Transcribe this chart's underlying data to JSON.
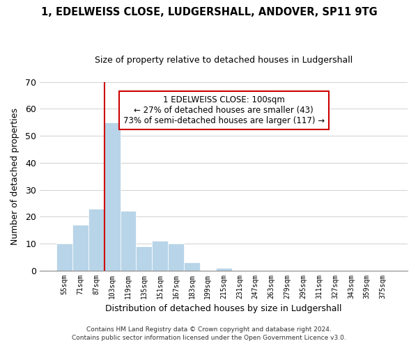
{
  "title": "1, EDELWEISS CLOSE, LUDGERSHALL, ANDOVER, SP11 9TG",
  "subtitle": "Size of property relative to detached houses in Ludgershall",
  "xlabel": "Distribution of detached houses by size in Ludgershall",
  "ylabel": "Number of detached properties",
  "bar_color": "#b8d4e8",
  "bins": [
    "55sqm",
    "71sqm",
    "87sqm",
    "103sqm",
    "119sqm",
    "135sqm",
    "151sqm",
    "167sqm",
    "183sqm",
    "199sqm",
    "215sqm",
    "231sqm",
    "247sqm",
    "263sqm",
    "279sqm",
    "295sqm",
    "311sqm",
    "327sqm",
    "343sqm",
    "359sqm",
    "375sqm"
  ],
  "values": [
    10,
    17,
    23,
    55,
    22,
    9,
    11,
    10,
    3,
    0,
    1,
    0,
    0,
    0,
    0,
    0,
    0,
    0,
    0,
    0,
    0
  ],
  "vline_color": "#cc0000",
  "vline_position": 2.5,
  "ylim": [
    0,
    70
  ],
  "yticks": [
    0,
    10,
    20,
    30,
    40,
    50,
    60,
    70
  ],
  "annotation_line1": "1 EDELWEISS CLOSE: 100sqm",
  "annotation_line2": "← 27% of detached houses are smaller (43)",
  "annotation_line3": "73% of semi-detached houses are larger (117) →",
  "annotation_box_edgecolor": "#cc0000",
  "footnote1": "Contains HM Land Registry data © Crown copyright and database right 2024.",
  "footnote2": "Contains public sector information licensed under the Open Government Licence v3.0.",
  "background_color": "#ffffff",
  "grid_color": "#d0d0d0",
  "title_fontsize": 10.5,
  "subtitle_fontsize": 9,
  "annotation_fontsize": 8.5
}
